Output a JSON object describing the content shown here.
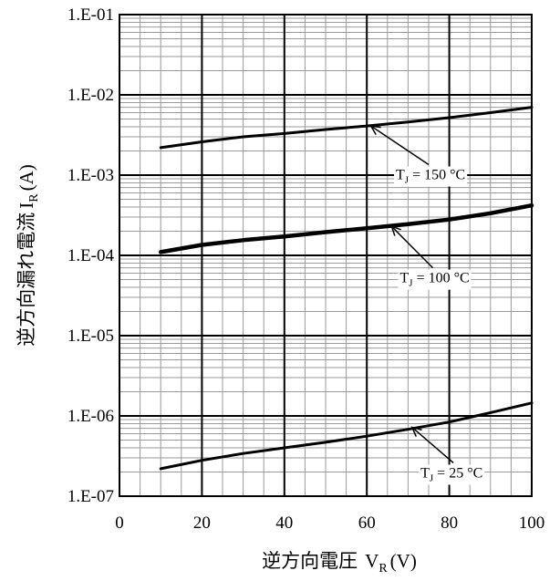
{
  "chart_data": {
    "type": "line",
    "title": "",
    "xlabel": "逆方向電圧",
    "xlabel_var": "V",
    "xlabel_sub": "R",
    "xlabel_unit": "(V)",
    "ylabel": "逆方向漏れ電流",
    "ylabel_var": "I",
    "ylabel_sub": "R",
    "ylabel_unit": "(A)",
    "xlim": [
      0,
      100
    ],
    "ylim": [
      1e-07,
      0.1
    ],
    "yscale": "log",
    "grid": true,
    "x_ticks": [
      0,
      20,
      40,
      60,
      80,
      100
    ],
    "x_tick_labels": [
      "0",
      "20",
      "40",
      "60",
      "80",
      "100"
    ],
    "y_ticks": [
      1e-07,
      1e-06,
      1e-05,
      0.0001,
      0.001,
      0.01,
      0.1
    ],
    "y_tick_labels": [
      "1.E-07",
      "1.E-06",
      "1.E-05",
      "1.E-04",
      "1.E-03",
      "1.E-02",
      "1.E-01"
    ],
    "series": [
      {
        "id": "tj150",
        "x": [
          10,
          20,
          30,
          40,
          50,
          60,
          70,
          80,
          90,
          100
        ],
        "y": [
          0.0022,
          0.0026,
          0.003,
          0.0033,
          0.0037,
          0.0041,
          0.0046,
          0.0052,
          0.006,
          0.007
        ]
      },
      {
        "id": "tj100",
        "x": [
          10,
          20,
          30,
          40,
          50,
          60,
          70,
          80,
          90,
          100
        ],
        "y": [
          0.00011,
          0.000135,
          0.000155,
          0.000172,
          0.000195,
          0.000218,
          0.000245,
          0.00028,
          0.000335,
          0.00042
        ]
      },
      {
        "id": "tj25",
        "x": [
          10,
          20,
          30,
          40,
          50,
          60,
          70,
          80,
          90,
          100
        ],
        "y": [
          2.2e-07,
          2.8e-07,
          3.4e-07,
          4e-07,
          4.7e-07,
          5.6e-07,
          6.8e-07,
          8.4e-07,
          1.1e-06,
          1.45e-06
        ]
      }
    ],
    "annotations": [
      {
        "id": "tj150",
        "prefix": "T",
        "sub": "J",
        "text": " = 150 °C",
        "arrow_tip": [
          61,
          0.0041
        ],
        "arrow_tail": [
          75,
          0.00135
        ]
      },
      {
        "id": "tj100",
        "prefix": "T",
        "sub": "J",
        "text": " = 100 °C",
        "arrow_tip": [
          66,
          0.00023
        ],
        "arrow_tail": [
          76,
          7e-05
        ]
      },
      {
        "id": "tj25",
        "prefix": "T",
        "sub": "J",
        "text": " = 25 °C",
        "arrow_tip": [
          71,
          7.2e-07
        ],
        "arrow_tail": [
          81,
          2.6e-07
        ]
      }
    ]
  }
}
